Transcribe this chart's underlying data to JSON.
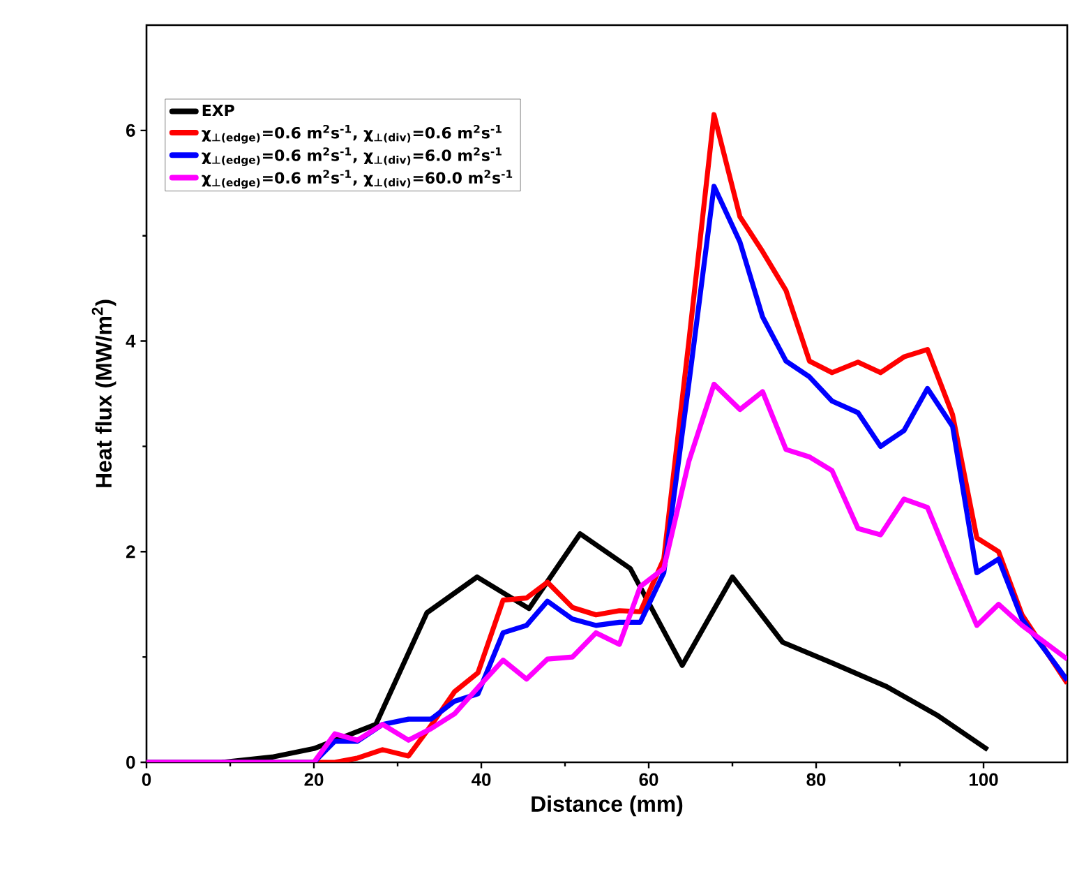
{
  "chart_data": {
    "type": "line",
    "xlabel": "Distance (mm)",
    "ylabel": "Heat flux (MW/m$^{2}$)",
    "xlim": [
      0,
      110
    ],
    "ylim": [
      0,
      7
    ],
    "xticks": [
      0,
      20,
      40,
      60,
      80,
      100
    ],
    "yticks": [
      0,
      2,
      4,
      6
    ],
    "grid": false,
    "legend": "top left",
    "series": [
      {
        "name": "EXP",
        "color": "#000000",
        "x": [
          9,
          15,
          20,
          27.4,
          33.5,
          39.5,
          45.7,
          51.8,
          57.8,
          64,
          70,
          76,
          82,
          88.4,
          94.4,
          100.5
        ],
        "values": [
          0,
          0.05,
          0.13,
          0.36,
          1.42,
          1.76,
          1.46,
          2.17,
          1.84,
          0.92,
          1.76,
          1.14,
          0.94,
          0.72,
          0.45,
          0.12
        ]
      },
      {
        "name": "χ$_{⊥(edge)}$=0.6 m$^{2}$s$^{-1}$, χ$_{⊥(div)}$=0.6 m$^{2}$s$^{-1}$",
        "color": "#ff0000",
        "x": [
          0,
          20,
          22.5,
          25.2,
          28.2,
          31.3,
          34,
          36.8,
          39.6,
          42.6,
          45.4,
          47.9,
          50.9,
          53.7,
          56.5,
          59,
          61.8,
          64.8,
          67.8,
          70.9,
          73.6,
          76.4,
          79.2,
          81.9,
          85,
          87.7,
          90.5,
          93.3,
          96.3,
          99.2,
          101.8,
          104.6,
          110
        ],
        "values": [
          0,
          0,
          0,
          0.04,
          0.12,
          0.06,
          0.35,
          0.67,
          0.85,
          1.54,
          1.56,
          1.71,
          1.47,
          1.4,
          1.44,
          1.43,
          1.93,
          4.0,
          6.15,
          5.18,
          4.85,
          4.48,
          3.81,
          3.7,
          3.8,
          3.7,
          3.85,
          3.92,
          3.3,
          2.13,
          2.0,
          1.4,
          0.75
        ]
      },
      {
        "name": "χ$_{⊥(edge)}$=0.6 m$^{2}$s$^{-1}$, χ$_{⊥(div)}$=6.0 m$^{2}$s$^{-1}$",
        "color": "#0000ff",
        "x": [
          0,
          20,
          22.5,
          25.2,
          28.2,
          31.3,
          34,
          36.8,
          39.6,
          42.6,
          45.4,
          47.9,
          50.9,
          53.7,
          56.5,
          59,
          61.8,
          64.8,
          67.8,
          70.9,
          73.6,
          76.4,
          79.2,
          81.9,
          85,
          87.7,
          90.5,
          93.3,
          96.3,
          99.2,
          101.8,
          104.6,
          110
        ],
        "values": [
          0,
          0,
          0.2,
          0.2,
          0.36,
          0.41,
          0.41,
          0.58,
          0.65,
          1.23,
          1.3,
          1.53,
          1.36,
          1.3,
          1.33,
          1.33,
          1.8,
          3.6,
          5.47,
          4.94,
          4.23,
          3.81,
          3.66,
          3.43,
          3.32,
          3.0,
          3.15,
          3.55,
          3.19,
          1.8,
          1.93,
          1.36,
          0.78
        ]
      },
      {
        "name": "χ$_{⊥(edge)}$=0.6 m$^{2}$s$^{-1}$, χ$_{⊥(div)}$=60.0 m$^{2}$s$^{-1}$",
        "color": "#ff00ff",
        "x": [
          0,
          20,
          22.5,
          25.2,
          28.2,
          31.3,
          34,
          36.8,
          39.6,
          42.6,
          45.4,
          47.9,
          50.9,
          53.7,
          56.5,
          59,
          61.8,
          64.8,
          67.8,
          70.9,
          73.6,
          76.4,
          79.2,
          81.9,
          85,
          87.7,
          90.5,
          93.3,
          96.3,
          99.2,
          101.8,
          104.6,
          110
        ],
        "values": [
          0,
          0,
          0.27,
          0.21,
          0.36,
          0.21,
          0.32,
          0.46,
          0.71,
          0.97,
          0.79,
          0.98,
          1.0,
          1.23,
          1.12,
          1.67,
          1.84,
          2.86,
          3.59,
          3.35,
          3.52,
          2.97,
          2.9,
          2.77,
          2.22,
          2.16,
          2.5,
          2.42,
          1.84,
          1.3,
          1.5,
          1.3,
          0.98
        ]
      }
    ]
  }
}
